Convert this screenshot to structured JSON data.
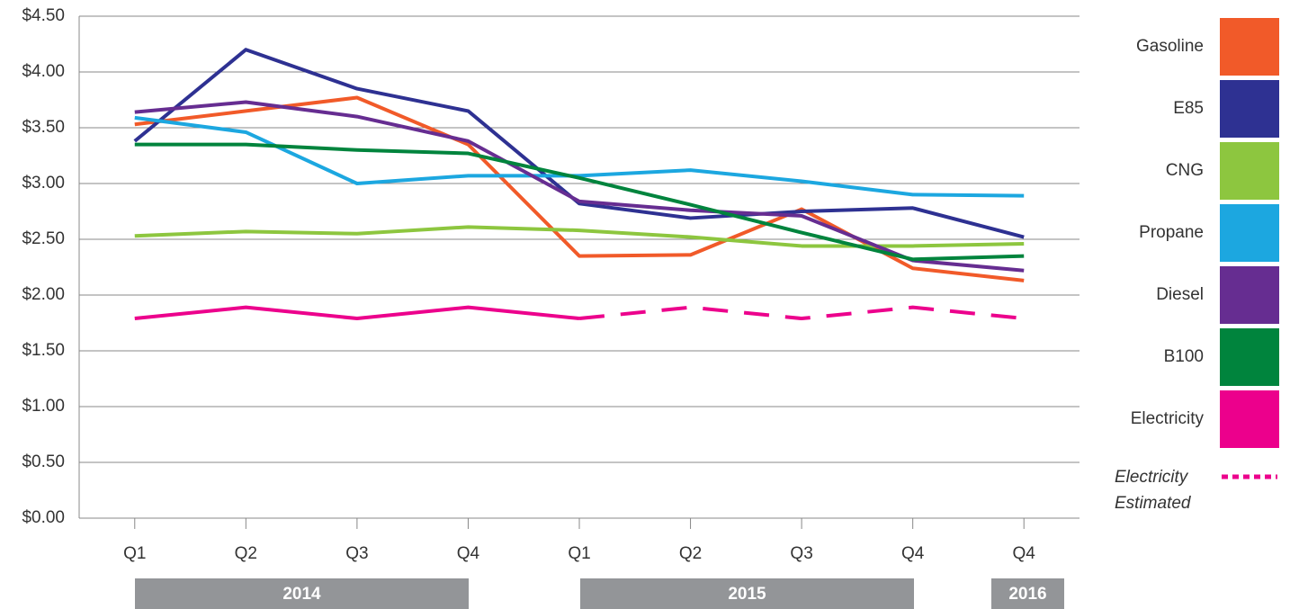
{
  "chart_data": {
    "type": "line",
    "categories": [
      "Q1",
      "Q2",
      "Q3",
      "Q4",
      "Q1",
      "Q2",
      "Q3",
      "Q4",
      "Q4"
    ],
    "groups": [
      "2014",
      "2015",
      "2016"
    ],
    "series": [
      {
        "name": "Gasoline",
        "color": "#f15a29",
        "values": [
          3.53,
          3.65,
          3.77,
          3.35,
          2.35,
          2.36,
          2.77,
          2.24,
          2.13
        ]
      },
      {
        "name": "E85",
        "color": "#2e3192",
        "values": [
          3.38,
          4.2,
          3.85,
          3.65,
          2.82,
          2.69,
          2.75,
          2.78,
          2.52
        ]
      },
      {
        "name": "CNG",
        "color": "#8dc63f",
        "values": [
          2.53,
          2.57,
          2.55,
          2.61,
          2.58,
          2.52,
          2.44,
          2.44,
          2.46
        ]
      },
      {
        "name": "Propane",
        "color": "#1ca7e0",
        "values": [
          3.59,
          3.46,
          3.0,
          3.07,
          3.07,
          3.12,
          3.02,
          2.9,
          2.89
        ]
      },
      {
        "name": "Diesel",
        "color": "#662d91",
        "values": [
          3.64,
          3.73,
          3.6,
          3.38,
          2.84,
          2.76,
          2.71,
          2.31,
          2.22
        ]
      },
      {
        "name": "B100",
        "color": "#00843d",
        "values": [
          3.35,
          3.35,
          3.3,
          3.27,
          3.05,
          2.81,
          2.56,
          2.32,
          2.35
        ]
      },
      {
        "name": "Electricity",
        "color": "#ec008c",
        "values": [
          1.79,
          1.89,
          1.79,
          1.89,
          1.79,
          null,
          null,
          null,
          null
        ]
      },
      {
        "name": "Electricity Estimated",
        "color": "#ec008c",
        "style": "dashed",
        "values": [
          null,
          null,
          null,
          null,
          1.79,
          1.89,
          1.79,
          1.89,
          1.79
        ]
      }
    ],
    "ylim": [
      0,
      4.5
    ],
    "yticks": [
      {
        "value": 0,
        "label": "$0.00"
      },
      {
        "value": 0.5,
        "label": "$0.50"
      },
      {
        "value": 1,
        "label": "$1.00"
      },
      {
        "value": 1.5,
        "label": "$1.50"
      },
      {
        "value": 2,
        "label": "$2.00"
      },
      {
        "value": 2.5,
        "label": "$2.50"
      },
      {
        "value": 3,
        "label": "$3.00"
      },
      {
        "value": 3.5,
        "label": "$3.50"
      },
      {
        "value": 4,
        "label": "$4.00"
      },
      {
        "value": 4.5,
        "label": "$4.50"
      }
    ],
    "grid": true
  }
}
